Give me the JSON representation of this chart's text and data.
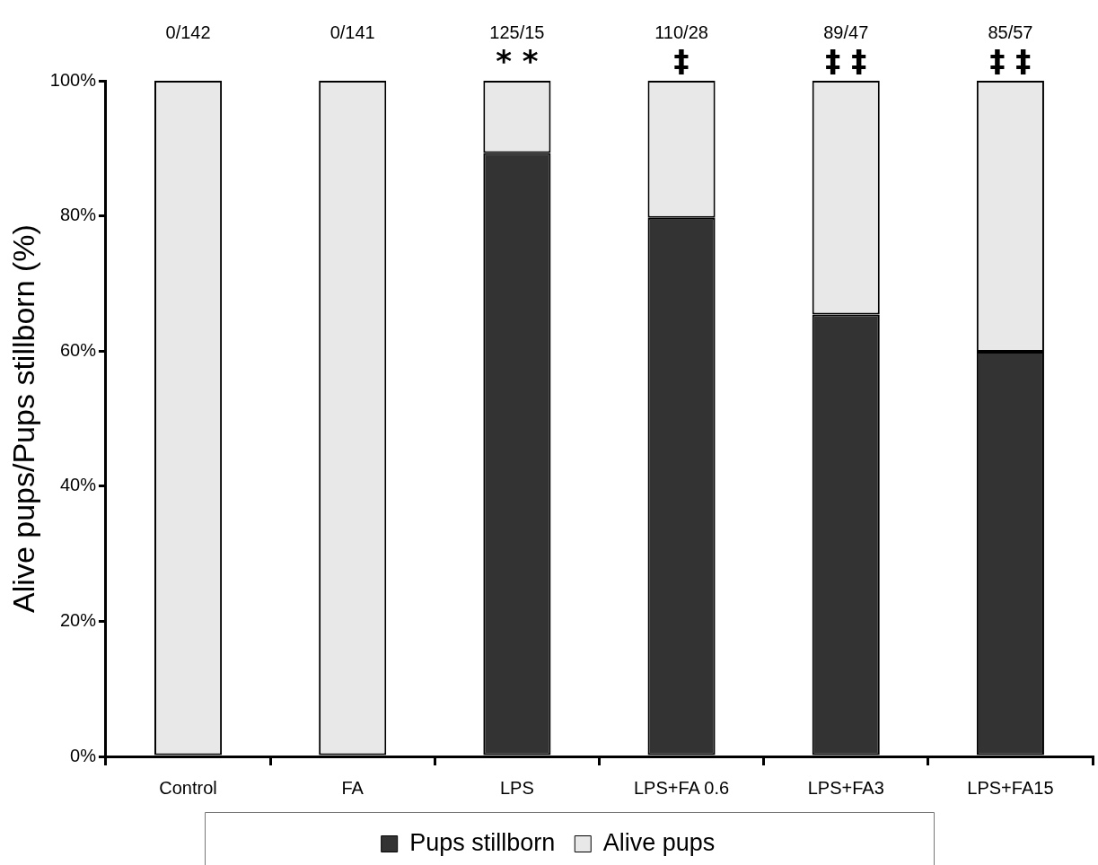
{
  "chart_data": {
    "type": "bar",
    "stacked": true,
    "ylabel": "Alive pups/Pups stillborn (%)",
    "categories": [
      "Control",
      "FA",
      "LPS",
      "LPS+FA 0.6",
      "LPS+FA3",
      "LPS+FA15"
    ],
    "series": [
      {
        "name": "Pups stillborn",
        "color": "#333333",
        "values": [
          0,
          0,
          89.3,
          79.7,
          65.4,
          59.9
        ]
      },
      {
        "name": "Alive pups",
        "color": "#e8e8e8",
        "values": [
          100,
          100,
          10.7,
          20.3,
          34.6,
          40.1
        ]
      }
    ],
    "ylim": [
      0,
      100
    ],
    "yticks": [
      {
        "value": 0,
        "label": "0%"
      },
      {
        "value": 20,
        "label": "20%"
      },
      {
        "value": 40,
        "label": "40%"
      },
      {
        "value": 60,
        "label": "60%"
      },
      {
        "value": 80,
        "label": "80%"
      },
      {
        "value": 100,
        "label": "100%"
      }
    ],
    "grid": false,
    "legend": "bottom",
    "annotations": [
      "0/142",
      "0/141",
      "125/15",
      "110/28",
      "89/47",
      "85/57",
      {
        "text": "* *",
        "x": "LPS",
        "y": 100
      },
      {
        "text": "‡",
        "x": "LPS+FA 0.6",
        "y": 100
      },
      {
        "text": "‡ ‡",
        "x": "LPS+FA3",
        "y": 100
      },
      {
        "text": "‡ ‡",
        "x": "LPS+FA15",
        "y": 100
      }
    ]
  }
}
